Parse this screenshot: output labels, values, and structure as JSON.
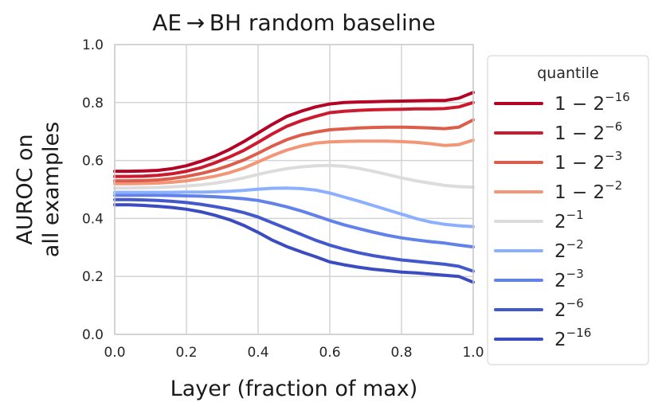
{
  "chart_data": {
    "type": "line",
    "title": "AE → BH random baseline",
    "xlabel": "Layer (fraction of max)",
    "ylabel_lines": [
      "AUROC on",
      "all examples"
    ],
    "xlim": [
      0.0,
      1.0
    ],
    "ylim": [
      0.0,
      1.0
    ],
    "x_ticks": [
      0.0,
      0.2,
      0.4,
      0.6,
      0.8,
      1.0
    ],
    "x_tick_labels": [
      "0.0",
      "0.2",
      "0.4",
      "0.6",
      "0.8",
      "1.0"
    ],
    "y_ticks": [
      0.0,
      0.2,
      0.4,
      0.6,
      0.8,
      1.0
    ],
    "y_tick_labels": [
      "0.0",
      "0.2",
      "0.4",
      "0.6",
      "0.8",
      "1.0"
    ],
    "grid": true,
    "legend_title": "quantile",
    "legend_position": "outside-right",
    "x": [
      0.0,
      0.04,
      0.08,
      0.12,
      0.16,
      0.2,
      0.24,
      0.28,
      0.32,
      0.36,
      0.4,
      0.44,
      0.48,
      0.52,
      0.56,
      0.6,
      0.64,
      0.68,
      0.72,
      0.76,
      0.8,
      0.84,
      0.88,
      0.92,
      0.96,
      1.0
    ],
    "series": [
      {
        "name": "1−2^−16",
        "label_base": "1 − 2",
        "label_exp": "−16",
        "color": "#b40426",
        "values": [
          0.563,
          0.563,
          0.564,
          0.566,
          0.572,
          0.582,
          0.597,
          0.615,
          0.638,
          0.665,
          0.695,
          0.725,
          0.752,
          0.77,
          0.785,
          0.795,
          0.8,
          0.802,
          0.803,
          0.804,
          0.805,
          0.806,
          0.807,
          0.807,
          0.815,
          0.835
        ]
      },
      {
        "name": "1−2^−6",
        "label_base": "1 − 2",
        "label_exp": "−6",
        "color": "#cc1b2e",
        "values": [
          0.545,
          0.545,
          0.546,
          0.549,
          0.554,
          0.563,
          0.575,
          0.592,
          0.612,
          0.635,
          0.663,
          0.692,
          0.718,
          0.737,
          0.752,
          0.765,
          0.77,
          0.773,
          0.775,
          0.776,
          0.777,
          0.778,
          0.778,
          0.779,
          0.785,
          0.8
        ]
      },
      {
        "name": "1−2^−3",
        "label_base": "1 − 2",
        "label_exp": "−3",
        "color": "#dc5d4a",
        "values": [
          0.53,
          0.53,
          0.531,
          0.533,
          0.538,
          0.545,
          0.555,
          0.567,
          0.583,
          0.602,
          0.625,
          0.65,
          0.672,
          0.688,
          0.698,
          0.706,
          0.709,
          0.712,
          0.714,
          0.715,
          0.715,
          0.714,
          0.712,
          0.71,
          0.715,
          0.74
        ]
      },
      {
        "name": "1−2^−2",
        "label_base": "1 − 2",
        "label_exp": "−2",
        "color": "#f39577",
        "values": [
          0.52,
          0.52,
          0.521,
          0.522,
          0.525,
          0.53,
          0.537,
          0.546,
          0.558,
          0.574,
          0.595,
          0.617,
          0.636,
          0.65,
          0.66,
          0.664,
          0.666,
          0.667,
          0.667,
          0.667,
          0.665,
          0.663,
          0.658,
          0.652,
          0.655,
          0.67
        ]
      },
      {
        "name": "2^−1",
        "label_base": "2",
        "label_exp": "−1",
        "color": "#dddcdc",
        "values": [
          0.505,
          0.505,
          0.506,
          0.507,
          0.509,
          0.512,
          0.516,
          0.522,
          0.53,
          0.54,
          0.552,
          0.563,
          0.572,
          0.578,
          0.582,
          0.583,
          0.58,
          0.573,
          0.563,
          0.552,
          0.54,
          0.53,
          0.522,
          0.514,
          0.51,
          0.508
        ]
      },
      {
        "name": "2^−2",
        "label_base": "2",
        "label_exp": "−2",
        "color": "#8db0fe",
        "values": [
          0.49,
          0.49,
          0.49,
          0.49,
          0.49,
          0.491,
          0.491,
          0.492,
          0.494,
          0.497,
          0.501,
          0.504,
          0.505,
          0.503,
          0.498,
          0.488,
          0.474,
          0.46,
          0.445,
          0.43,
          0.415,
          0.4,
          0.388,
          0.38,
          0.375,
          0.372
        ]
      },
      {
        "name": "2^−3",
        "label_base": "2",
        "label_exp": "−3",
        "color": "#6282ea",
        "values": [
          0.48,
          0.48,
          0.48,
          0.48,
          0.479,
          0.478,
          0.477,
          0.475,
          0.472,
          0.468,
          0.462,
          0.452,
          0.44,
          0.426,
          0.41,
          0.393,
          0.378,
          0.365,
          0.353,
          0.342,
          0.333,
          0.326,
          0.32,
          0.315,
          0.308,
          0.302
        ]
      },
      {
        "name": "2^−6",
        "label_base": "2",
        "label_exp": "−6",
        "color": "#4358cb",
        "values": [
          0.465,
          0.465,
          0.464,
          0.462,
          0.459,
          0.455,
          0.449,
          0.441,
          0.432,
          0.42,
          0.405,
          0.385,
          0.365,
          0.345,
          0.325,
          0.308,
          0.294,
          0.282,
          0.272,
          0.264,
          0.257,
          0.252,
          0.247,
          0.242,
          0.235,
          0.218
        ]
      },
      {
        "name": "2^−16",
        "label_base": "2",
        "label_exp": "−16",
        "color": "#3b4cc0",
        "values": [
          0.447,
          0.447,
          0.445,
          0.442,
          0.438,
          0.432,
          0.423,
          0.411,
          0.396,
          0.376,
          0.352,
          0.325,
          0.303,
          0.285,
          0.268,
          0.25,
          0.24,
          0.232,
          0.225,
          0.22,
          0.215,
          0.212,
          0.208,
          0.204,
          0.2,
          0.18
        ]
      }
    ]
  }
}
